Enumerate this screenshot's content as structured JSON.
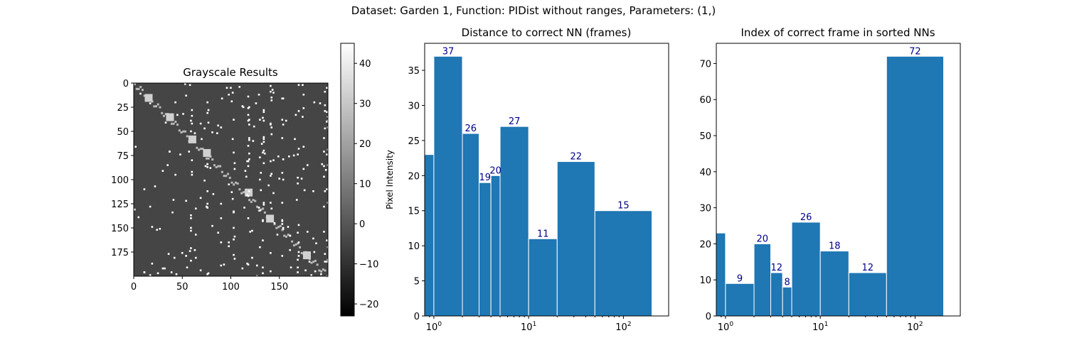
{
  "figure_title": "Dataset:  Garden 1,  Function:  PIDist without ranges, Parameters: (1,)",
  "chart_data": [
    {
      "type": "heatmap",
      "title": "Grayscale Results",
      "x_ticks": [
        "0",
        "50",
        "100",
        "150"
      ],
      "y_ticks": [
        "0",
        "25",
        "50",
        "75",
        "100",
        "125",
        "150",
        "175"
      ],
      "xlim": [
        0,
        200
      ],
      "ylim": [
        200,
        0
      ],
      "colorbar": {
        "label": "Pixel Intensity",
        "range": [
          -23,
          45
        ],
        "ticks": [
          "−20",
          "−10",
          "0",
          "10",
          "20",
          "30",
          "40"
        ],
        "tick_values": [
          -20,
          -10,
          0,
          10,
          20,
          30,
          40
        ]
      }
    },
    {
      "type": "bar",
      "title": "Distance to correct NN (frames)",
      "xscale": "log",
      "xlim": [
        0.8,
        300
      ],
      "ylim": [
        0,
        38.85
      ],
      "bins": [
        {
          "left": 0.5,
          "right": 1,
          "value": 23,
          "label": ""
        },
        {
          "left": 1,
          "right": 2,
          "value": 37,
          "label": "37"
        },
        {
          "left": 2,
          "right": 3,
          "value": 26,
          "label": "26"
        },
        {
          "left": 3,
          "right": 4,
          "value": 19,
          "label": "19"
        },
        {
          "left": 4,
          "right": 5,
          "value": 20,
          "label": "20"
        },
        {
          "left": 5,
          "right": 10,
          "value": 27,
          "label": "27"
        },
        {
          "left": 10,
          "right": 20,
          "value": 11,
          "label": "11"
        },
        {
          "left": 20,
          "right": 50,
          "value": 22,
          "label": "22"
        },
        {
          "left": 50,
          "right": 200,
          "value": 15,
          "label": "15"
        }
      ],
      "y_ticks": [
        0,
        5,
        10,
        15,
        20,
        25,
        30,
        35
      ],
      "x_ticks": [
        {
          "value": 1,
          "base": "10",
          "exp": "0"
        },
        {
          "value": 10,
          "base": "10",
          "exp": "1"
        },
        {
          "value": 100,
          "base": "10",
          "exp": "2"
        }
      ],
      "color": "#1f77b4",
      "label_color": "#00008b"
    },
    {
      "type": "bar",
      "title": "Index of correct frame in sorted NNs",
      "xscale": "log",
      "xlim": [
        0.8,
        300
      ],
      "ylim": [
        0,
        75.6
      ],
      "bins": [
        {
          "left": 0.5,
          "right": 1,
          "value": 23,
          "label": ""
        },
        {
          "left": 1,
          "right": 2,
          "value": 9,
          "label": "9"
        },
        {
          "left": 2,
          "right": 3,
          "value": 20,
          "label": "20"
        },
        {
          "left": 3,
          "right": 4,
          "value": 12,
          "label": "12"
        },
        {
          "left": 4,
          "right": 5,
          "value": 8,
          "label": "8"
        },
        {
          "left": 5,
          "right": 10,
          "value": 26,
          "label": "26"
        },
        {
          "left": 10,
          "right": 20,
          "value": 18,
          "label": "18"
        },
        {
          "left": 20,
          "right": 50,
          "value": 12,
          "label": "12"
        },
        {
          "left": 50,
          "right": 200,
          "value": 72,
          "label": "72"
        }
      ],
      "y_ticks": [
        0,
        10,
        20,
        30,
        40,
        50,
        60,
        70
      ],
      "x_ticks": [
        {
          "value": 1,
          "base": "10",
          "exp": "0"
        },
        {
          "value": 10,
          "base": "10",
          "exp": "1"
        },
        {
          "value": 100,
          "base": "10",
          "exp": "2"
        }
      ],
      "color": "#1f77b4",
      "label_color": "#00008b"
    }
  ]
}
